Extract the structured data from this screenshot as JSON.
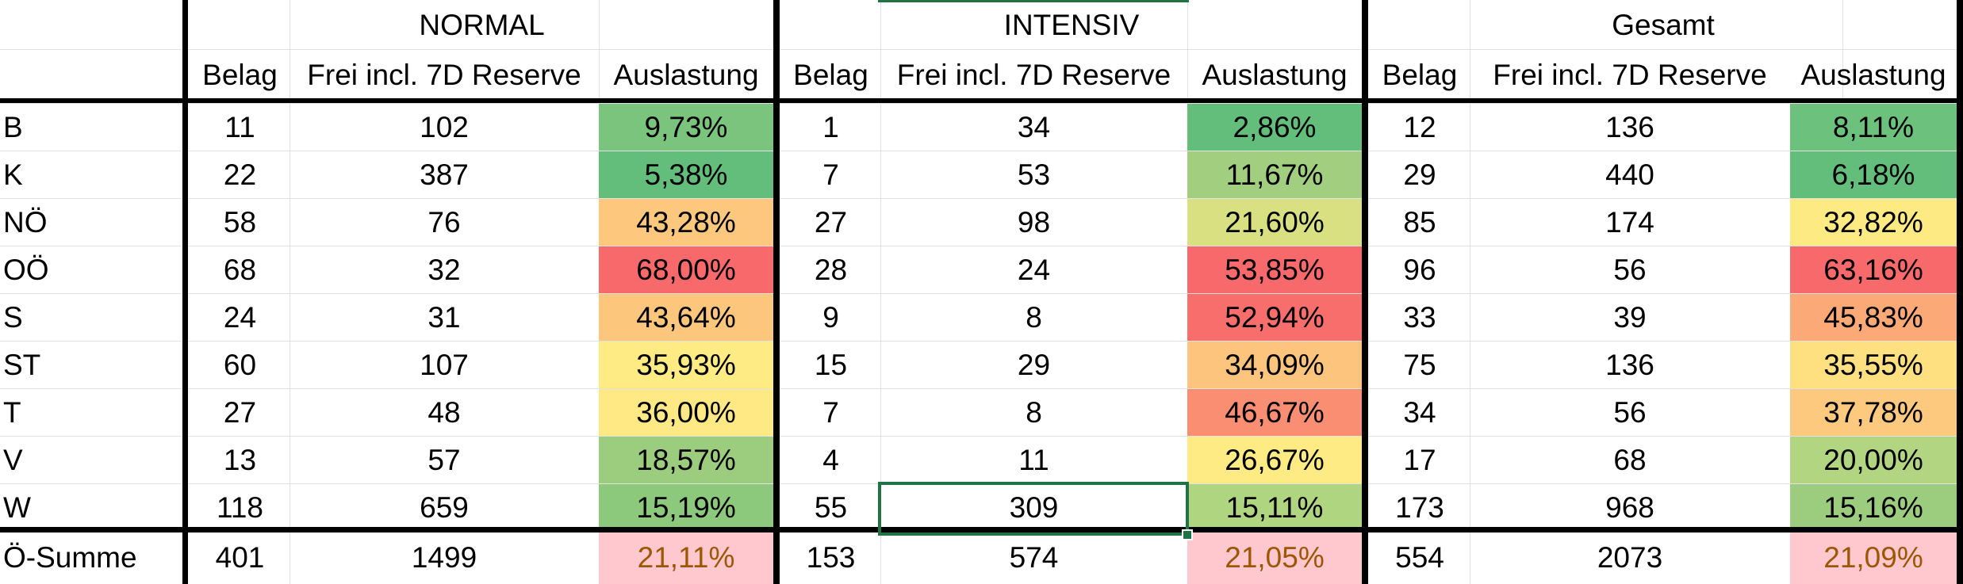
{
  "header": {
    "group_titles": [
      "NORMAL",
      "INTENSIV",
      "Gesamt"
    ],
    "sub_headers": [
      "Belag",
      "Frei incl. 7D Reserve",
      "Auslastung"
    ]
  },
  "rows": [
    {
      "label": "B",
      "normal": [
        "11",
        "102",
        "9,73%"
      ],
      "intensiv": [
        "1",
        "34",
        "2,86%"
      ],
      "gesamt": [
        "12",
        "136",
        "8,11%"
      ],
      "colors": [
        "#7bc47e",
        "#63be7b",
        "#6cc17c"
      ]
    },
    {
      "label": "K",
      "normal": [
        "22",
        "387",
        "5,38%"
      ],
      "intensiv": [
        "7",
        "53",
        "11,67%"
      ],
      "gesamt": [
        "29",
        "440",
        "6,18%"
      ],
      "colors": [
        "#63be7b",
        "#a1cf7f",
        "#63be7b"
      ]
    },
    {
      "label": "NÖ",
      "normal": [
        "58",
        "76",
        "43,28%"
      ],
      "intensiv": [
        "27",
        "98",
        "21,60%"
      ],
      "gesamt": [
        "85",
        "174",
        "32,82%"
      ],
      "colors": [
        "#fdc87d",
        "#d8e082",
        "#feea83"
      ]
    },
    {
      "label": "OÖ",
      "normal": [
        "68",
        "32",
        "68,00%"
      ],
      "intensiv": [
        "28",
        "24",
        "53,85%"
      ],
      "gesamt": [
        "96",
        "56",
        "63,16%"
      ],
      "colors": [
        "#f8696b",
        "#f8696b",
        "#f8696b"
      ]
    },
    {
      "label": "S",
      "normal": [
        "24",
        "31",
        "43,64%"
      ],
      "intensiv": [
        "9",
        "8",
        "52,94%"
      ],
      "gesamt": [
        "33",
        "39",
        "45,83%"
      ],
      "colors": [
        "#fdc67d",
        "#f86e6c",
        "#fba977"
      ]
    },
    {
      "label": "ST",
      "normal": [
        "60",
        "107",
        "35,93%"
      ],
      "intensiv": [
        "15",
        "29",
        "34,09%"
      ],
      "gesamt": [
        "75",
        "136",
        "35,55%"
      ],
      "colors": [
        "#feeb84",
        "#fdc47d",
        "#fee081"
      ]
    },
    {
      "label": "T",
      "normal": [
        "27",
        "48",
        "36,00%"
      ],
      "intensiv": [
        "7",
        "8",
        "46,67%"
      ],
      "gesamt": [
        "34",
        "56",
        "37,78%"
      ],
      "colors": [
        "#ffe984",
        "#f98e72",
        "#fdc97e"
      ]
    },
    {
      "label": "V",
      "normal": [
        "13",
        "57",
        "18,57%"
      ],
      "intensiv": [
        "4",
        "11",
        "26,67%"
      ],
      "gesamt": [
        "17",
        "68",
        "20,00%"
      ],
      "colors": [
        "#9ccd7e",
        "#ffeb84",
        "#b1d580"
      ]
    },
    {
      "label": "W",
      "normal": [
        "118",
        "659",
        "15,19%"
      ],
      "intensiv": [
        "55",
        "309",
        "15,11%"
      ],
      "gesamt": [
        "173",
        "968",
        "15,16%"
      ],
      "colors": [
        "#8dc97d",
        "#b0d580",
        "#9ccd7e"
      ]
    }
  ],
  "summary": {
    "label": "Ö-Summe",
    "normal": [
      "401",
      "1499",
      "21,11%"
    ],
    "intensiv": [
      "153",
      "574",
      "21,05%"
    ],
    "gesamt": [
      "554",
      "2073",
      "21,09%"
    ],
    "fill_color": "#ffc7ce",
    "text_color": "#9c5700"
  },
  "selection_color": "#217346"
}
